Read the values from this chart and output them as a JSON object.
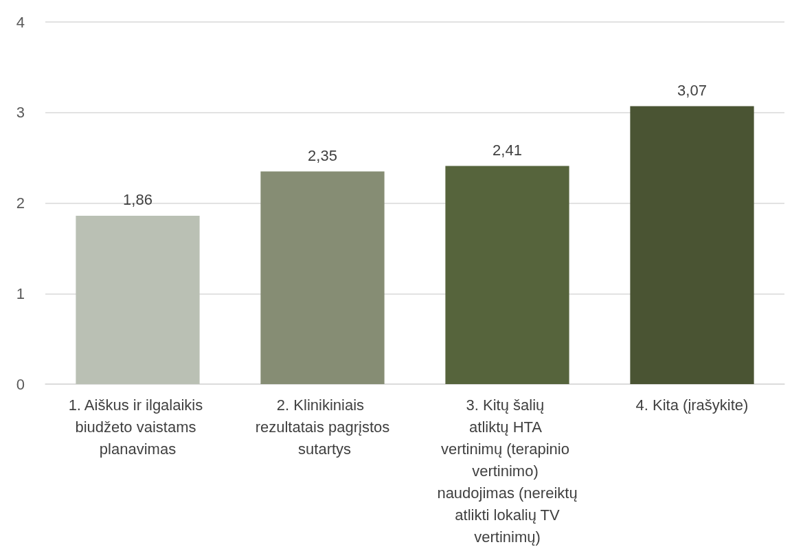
{
  "chart_data": {
    "type": "bar",
    "categories": [
      "1. Aiškus ir ilgalaikis biudžeto vaistams planavimas",
      "2. Klinikiniais rezultatais pagrįstos sutartys",
      "3. Kitų šalių atliktų HTA vertinimų (terapinio vertinimo) naudojimas (nereiktų atlikti lokalių TV vertinimų)",
      "4. Kita (įrašykite)"
    ],
    "values": [
      1.86,
      2.35,
      2.41,
      3.07
    ],
    "colors": [
      "#bac0b4",
      "#868d74",
      "#56643c",
      "#4a5433"
    ],
    "value_labels": [
      "1,86",
      "2,35",
      "2,41",
      "3,07"
    ],
    "ylim": [
      0,
      4
    ],
    "yticks": [
      0,
      1,
      2,
      3,
      4
    ],
    "grid": "y"
  }
}
